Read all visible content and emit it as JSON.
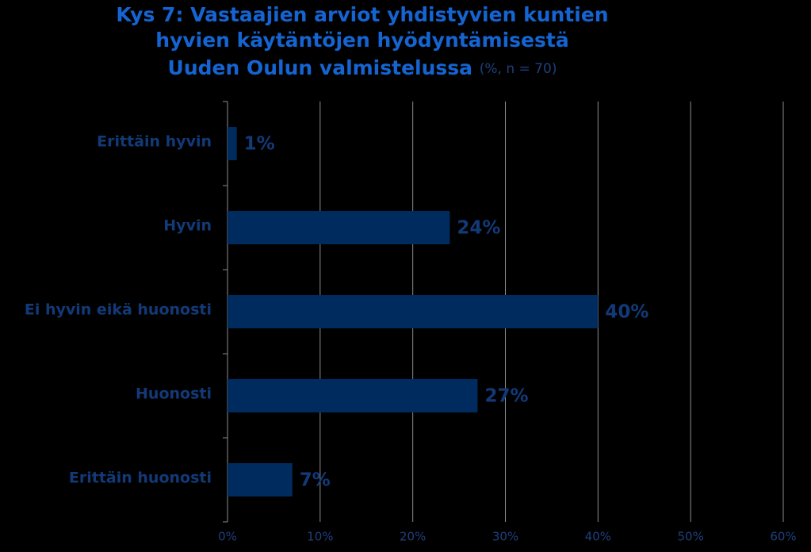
{
  "chart_data": {
    "type": "hbar",
    "title": [
      "Kys 7: Vastaajien arviot yhdistyvien kuntien",
      "hyvien käytäntöjen hyödyntämisestä",
      "Uuden Oulun valmistelussa"
    ],
    "subtitle": "(%, n = 70)",
    "categories": [
      "Erittäin hyvin",
      "Hyvin",
      "Ei hyvin eikä huonosti",
      "Huonosti",
      "Erittäin huonosti"
    ],
    "values": [
      1,
      24,
      40,
      27,
      7
    ],
    "value_labels": [
      "1%",
      "24%",
      "40%",
      "27%",
      "7%"
    ],
    "color": "#002b5e",
    "xlim": [
      0,
      60
    ],
    "xticks": [
      {
        "value": 0,
        "label": "0%"
      },
      {
        "value": 10,
        "label": "10%"
      },
      {
        "value": 20,
        "label": "20%"
      },
      {
        "value": 30,
        "label": "30%"
      },
      {
        "value": 40,
        "label": "40%"
      },
      {
        "value": 50,
        "label": "50%"
      },
      {
        "value": 60,
        "label": "60%"
      }
    ],
    "grid": true
  }
}
